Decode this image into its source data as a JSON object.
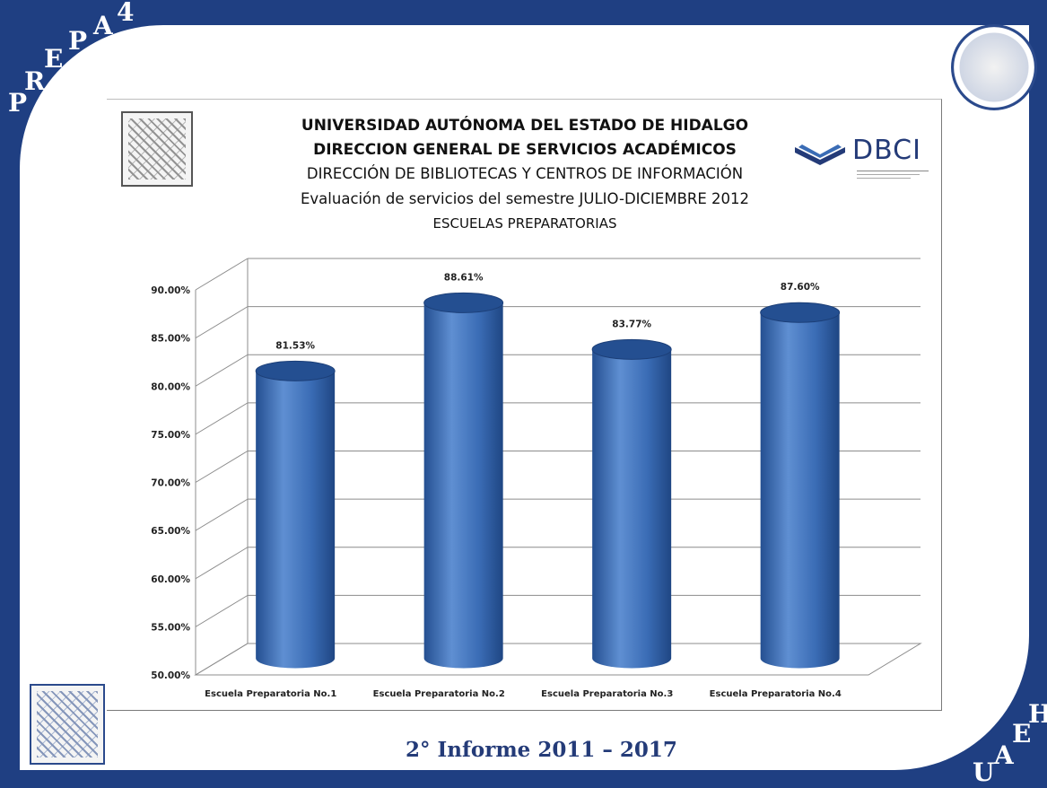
{
  "corner": {
    "top_left_letters": [
      "P",
      "R",
      "E",
      "P",
      "A",
      "4"
    ],
    "bottom_right_letters": [
      "U",
      "A",
      "E",
      "H"
    ]
  },
  "header": {
    "line1": "UNIVERSIDAD AUTÓNOMA DEL ESTADO DE HIDALGO",
    "line2": "DIRECCION GENERAL DE SERVICIOS ACADÉMICOS",
    "line3": "DIRECCIÓN DE BIBLIOTECAS Y CENTROS DE INFORMACIÓN",
    "line4": "Evaluación de servicios del semestre  JULIO-DICIEMBRE 2012",
    "line5": "ESCUELAS PREPARATORIAS"
  },
  "logo": {
    "dbci": "DBCI"
  },
  "footer": {
    "text": "2° Informe 2011 – 2017"
  },
  "colors": {
    "frame": "#1f3f82",
    "bar": "#3a6cb5",
    "bar_dark": "#244f91",
    "bar_light": "#5f8fd2",
    "grid": "#8c8c8c"
  },
  "chart_data": {
    "type": "bar",
    "style": "3d-cylinder",
    "categories": [
      "Escuela Preparatoria No.1",
      "Escuela Preparatoria No.2",
      "Escuela Preparatoria No.3",
      "Escuela Preparatoria No.4"
    ],
    "values": [
      81.53,
      88.61,
      83.77,
      87.6
    ],
    "value_labels": [
      "81.53%",
      "88.61%",
      "83.77%",
      "87.60%"
    ],
    "yticks": [
      "50.00%",
      "55.00%",
      "60.00%",
      "65.00%",
      "70.00%",
      "75.00%",
      "80.00%",
      "85.00%",
      "90.00%"
    ],
    "ylim": [
      50,
      90
    ],
    "grid": true,
    "legend": "none"
  }
}
